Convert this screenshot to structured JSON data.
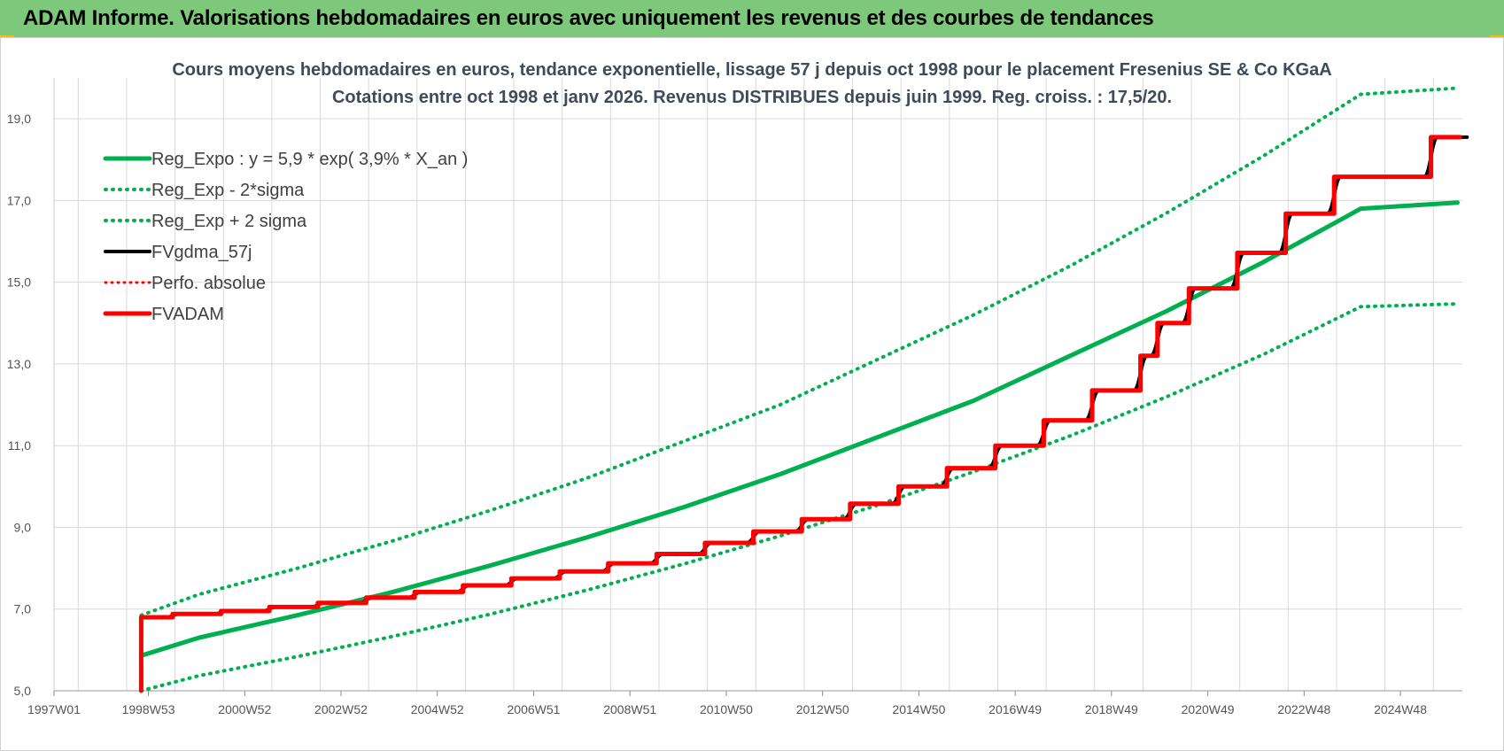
{
  "header": {
    "title": "ADAM Informe. Valorisations hebdomadaires en euros avec uniquement les revenus et des courbes de tendances"
  },
  "colors": {
    "banner": "#7dc87a",
    "reg_green": "#00b050",
    "black": "#000000",
    "red": "#ff0000",
    "grid": "#d9d9d9"
  },
  "chart_data": {
    "type": "line",
    "title": "Cours moyens hebdomadaires en euros, tendance exponentielle, lissage 57 j depuis oct 1998 pour le placement Fresenius SE & Co KGaA",
    "subtitle": "Cotations entre oct 1998 et janv 2026. Revenus DISTRIBUES depuis juin 1999. Reg. croiss. : 17,5/20.",
    "xlabel": "",
    "ylabel": "",
    "x_ticks": [
      "1997W01",
      "1998W53",
      "2000W52",
      "2002W52",
      "2004W52",
      "2006W51",
      "2008W51",
      "2010W50",
      "2012W50",
      "2014W50",
      "2016W49",
      "2018W49",
      "2020W49",
      "2022W48",
      "2024W48"
    ],
    "xlim": [
      1997.0,
      2026.1
    ],
    "ylim": [
      5,
      20
    ],
    "y_ticks": [
      "5,0",
      "7,0",
      "9,0",
      "11,0",
      "13,0",
      "15,0",
      "17,0",
      "19,0"
    ],
    "grid": true,
    "legend_position": "top-left",
    "series": [
      {
        "name": "Reg_Expo : y = 5,9 * exp( 3,9% *  X_an )",
        "style": "solid-green",
        "x": [
          1998.8,
          2000,
          2002,
          2004,
          2006,
          2008,
          2010,
          2012,
          2014,
          2016,
          2018,
          2020,
          2022,
          2024,
          2026
        ],
        "values": [
          5.86,
          6.3,
          6.84,
          7.42,
          8.06,
          8.75,
          9.49,
          10.3,
          11.2,
          12.1,
          13.2,
          14.3,
          15.5,
          16.8,
          16.95
        ]
      },
      {
        "name": "Reg_Exp - 2*sigma",
        "style": "dotted-green",
        "x": [
          1998.8,
          2000,
          2002,
          2004,
          2006,
          2008,
          2010,
          2012,
          2014,
          2016,
          2018,
          2020,
          2022,
          2024,
          2026
        ],
        "values": [
          5.0,
          5.37,
          5.83,
          6.33,
          6.87,
          7.46,
          8.1,
          8.79,
          9.54,
          10.36,
          11.24,
          12.2,
          13.24,
          14.4,
          14.47
        ]
      },
      {
        "name": "Reg_Exp + 2 sigma",
        "style": "dotted-green",
        "x": [
          1998.8,
          2000,
          2002,
          2004,
          2006,
          2008,
          2010,
          2012,
          2014,
          2016,
          2018,
          2020,
          2022,
          2024,
          2026
        ],
        "values": [
          6.85,
          7.36,
          7.99,
          8.67,
          9.41,
          10.2,
          11.1,
          12.0,
          13.1,
          14.2,
          15.4,
          16.7,
          18.1,
          19.6,
          19.75
        ]
      },
      {
        "name": "FVgdma_57j",
        "style": "solid-black",
        "x": [
          1998.8,
          1999.45,
          2000.45,
          2001.45,
          2002.45,
          2003.45,
          2004.45,
          2005.45,
          2006.45,
          2007.45,
          2008.45,
          2009.45,
          2010.45,
          2011.45,
          2012.45,
          2013.45,
          2014.45,
          2015.45,
          2016.45,
          2017.45,
          2018.45,
          2019.45,
          2019.8,
          2020.45,
          2021.45,
          2022.45,
          2023.45,
          2024.45,
          2025.45,
          2026.05
        ],
        "values": [
          6.8,
          6.88,
          6.95,
          7.05,
          7.15,
          7.28,
          7.42,
          7.58,
          7.75,
          7.92,
          8.12,
          8.35,
          8.62,
          8.9,
          9.2,
          9.58,
          10.0,
          10.45,
          11.0,
          11.62,
          12.35,
          13.2,
          14.0,
          14.85,
          15.72,
          16.68,
          17.58,
          17.58,
          18.55,
          18.55
        ]
      },
      {
        "name": "Perfo. absolue",
        "style": "dotted-red",
        "x": [],
        "values": []
      },
      {
        "name": "FVADAM",
        "style": "solid-red",
        "x": [
          1998.8,
          1998.8,
          1999.45,
          2000.45,
          2001.45,
          2002.45,
          2003.45,
          2004.45,
          2005.45,
          2006.45,
          2007.45,
          2008.45,
          2009.45,
          2010.45,
          2011.45,
          2012.45,
          2013.45,
          2014.45,
          2015.45,
          2016.45,
          2017.45,
          2018.45,
          2019.45,
          2019.8,
          2020.45,
          2021.45,
          2022.45,
          2023.45,
          2024.45,
          2025.45,
          2026.05
        ],
        "values": [
          5.0,
          6.8,
          6.88,
          6.95,
          7.05,
          7.15,
          7.28,
          7.42,
          7.58,
          7.75,
          7.92,
          8.12,
          8.35,
          8.62,
          8.9,
          9.2,
          9.58,
          10.0,
          10.45,
          11.0,
          11.62,
          12.35,
          13.2,
          14.0,
          14.85,
          15.72,
          16.68,
          17.58,
          17.58,
          18.55,
          18.55
        ]
      }
    ]
  }
}
